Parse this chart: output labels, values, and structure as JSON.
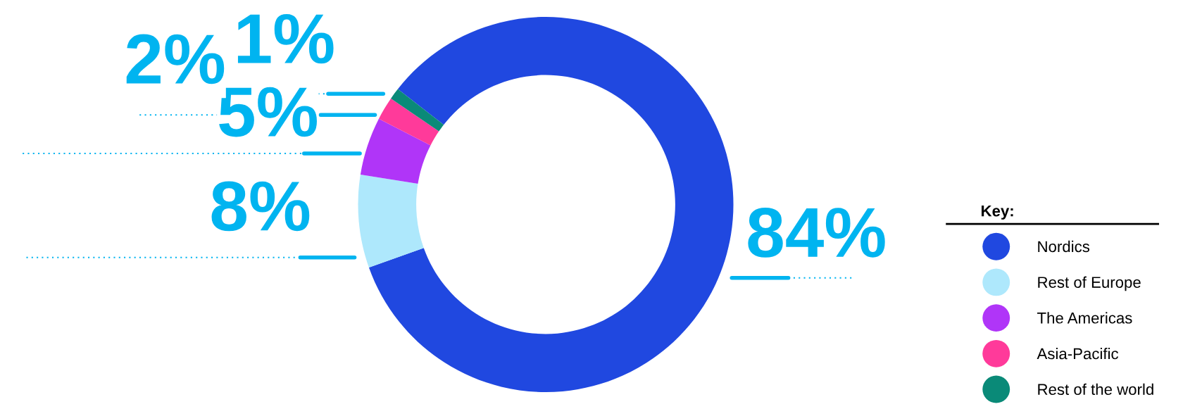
{
  "chart_data": {
    "type": "donut",
    "categories": [
      "Nordics",
      "Rest of Europe",
      "The Americas",
      "Asia-Pacific",
      "Rest of the world"
    ],
    "values": [
      84,
      8,
      5,
      2,
      1
    ],
    "colors": [
      "#2048e0",
      "#aee8fc",
      "#b035f8",
      "#ff3a9a",
      "#0a8a78"
    ],
    "value_labels": [
      "84%",
      "8%",
      "5%",
      "2%",
      "1%"
    ],
    "legend_title": "Key:",
    "legend": "right"
  }
}
